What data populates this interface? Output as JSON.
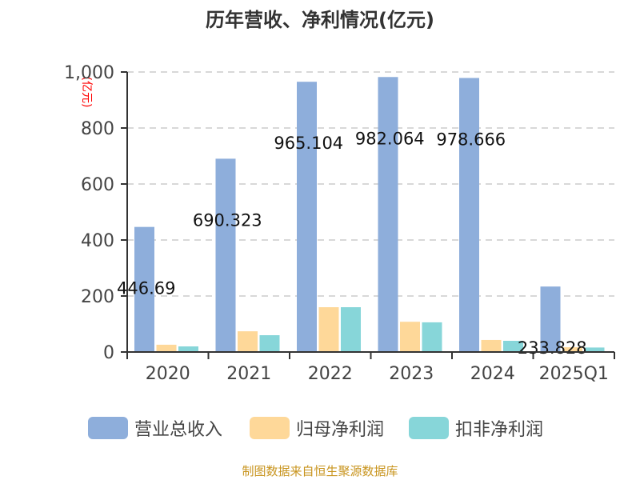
{
  "chart_data": {
    "type": "bar",
    "title": "历年营收、净利情况(亿元)",
    "ylabel": "(亿元)",
    "ylim": [
      0,
      1000
    ],
    "yticks": [
      0,
      200,
      400,
      600,
      800,
      1000
    ],
    "ytick_labels": [
      "0",
      "200",
      "400",
      "600",
      "800",
      "1,000"
    ],
    "grid": true,
    "legend_position": "bottom",
    "categories": [
      "2020",
      "2021",
      "2022",
      "2023",
      "2024",
      "2025Q1"
    ],
    "series": [
      {
        "name": "营业总收入",
        "color": "#8eaedb",
        "values": [
          446.69,
          690.323,
          965.104,
          982.064,
          978.666,
          233.828
        ],
        "labels": [
          "446.69",
          "690.323",
          "965.104",
          "982.064",
          "978.666",
          "233.828"
        ]
      },
      {
        "name": "归母净利润",
        "color": "#fed899",
        "values": [
          26,
          74,
          160,
          108,
          43,
          17
        ]
      },
      {
        "name": "扣非净利润",
        "color": "#87d6d9",
        "values": [
          20,
          60,
          160,
          106,
          40,
          16
        ]
      }
    ]
  },
  "footer": {
    "source": "制图数据来自恒生聚源数据库",
    "color": "#c8941e"
  }
}
